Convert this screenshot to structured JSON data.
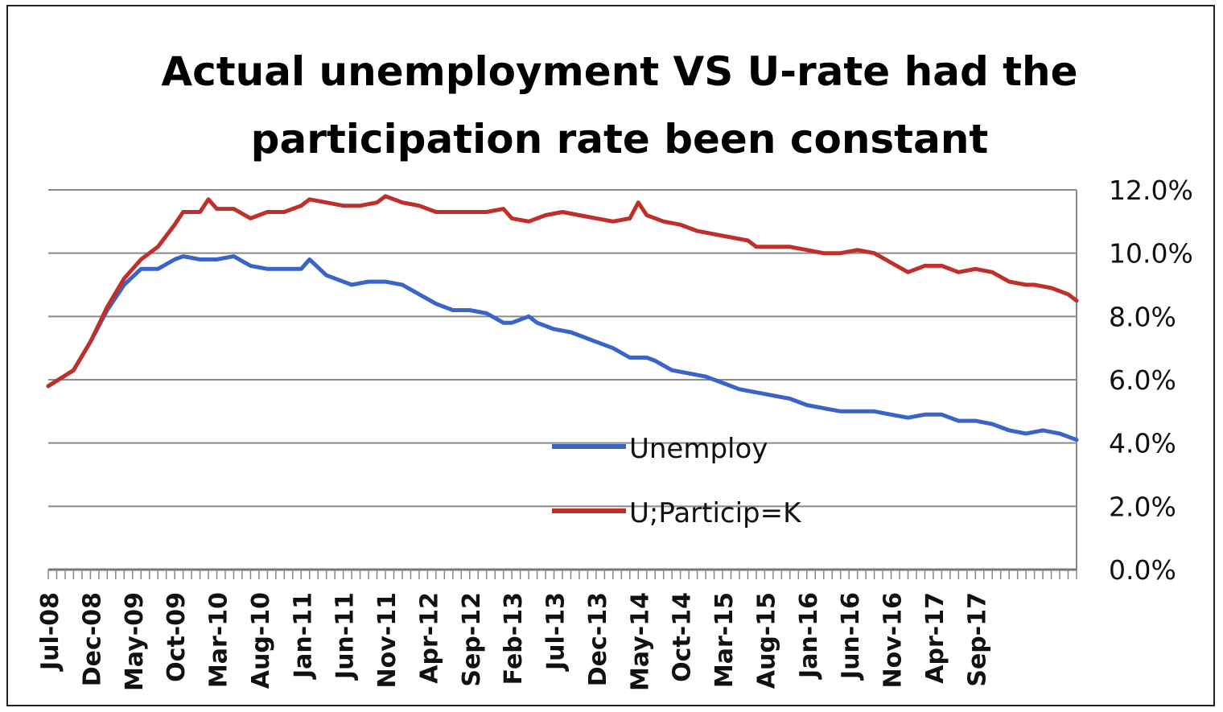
{
  "chart_data": {
    "type": "line",
    "title_lines": [
      "Actual unemployment VS U-rate had the",
      "participation rate been constant"
    ],
    "xlabel": "",
    "ylabel": "",
    "ylim": [
      0,
      12
    ],
    "y_ticks": [
      "0.0%",
      "2.0%",
      "4.0%",
      "6.0%",
      "8.0%",
      "10.0%",
      "12.0%"
    ],
    "x_ticks": [
      "Jul-08",
      "Dec-08",
      "May-09",
      "Oct-09",
      "Mar-10",
      "Aug-10",
      "Jan-11",
      "Jun-11",
      "Nov-11",
      "Apr-12",
      "Sep-12",
      "Feb-13",
      "Jul-13",
      "Dec-13",
      "May-14",
      "Oct-14",
      "Mar-15",
      "Aug-15",
      "Jan-16",
      "Jun-16",
      "Nov-16",
      "Apr-17",
      "Sep-17"
    ],
    "grid": true,
    "legend_position": "center",
    "series": [
      {
        "name": "Unemploy",
        "color": "#3a64c8",
        "points": [
          [
            0,
            5.8
          ],
          [
            3,
            6.3
          ],
          [
            5,
            7.2
          ],
          [
            7,
            8.2
          ],
          [
            9,
            9
          ],
          [
            11,
            9.5
          ],
          [
            13,
            9.5
          ],
          [
            15,
            9.8
          ],
          [
            16,
            9.9
          ],
          [
            18,
            9.8
          ],
          [
            20,
            9.8
          ],
          [
            22,
            9.9
          ],
          [
            24,
            9.6
          ],
          [
            26,
            9.5
          ],
          [
            28,
            9.5
          ],
          [
            30,
            9.5
          ],
          [
            31,
            9.8
          ],
          [
            33,
            9.3
          ],
          [
            36,
            9
          ],
          [
            38,
            9.1
          ],
          [
            40,
            9.1
          ],
          [
            42,
            9
          ],
          [
            44,
            8.7
          ],
          [
            46,
            8.4
          ],
          [
            48,
            8.2
          ],
          [
            50,
            8.2
          ],
          [
            52,
            8.1
          ],
          [
            54,
            7.8
          ],
          [
            55,
            7.8
          ],
          [
            57,
            8
          ],
          [
            58,
            7.8
          ],
          [
            60,
            7.6
          ],
          [
            62,
            7.5
          ],
          [
            64,
            7.3
          ],
          [
            65,
            7.2
          ],
          [
            67,
            7
          ],
          [
            69,
            6.7
          ],
          [
            71,
            6.7
          ],
          [
            72,
            6.6
          ],
          [
            74,
            6.3
          ],
          [
            76,
            6.2
          ],
          [
            78,
            6.1
          ],
          [
            80,
            5.9
          ],
          [
            82,
            5.7
          ],
          [
            84,
            5.6
          ],
          [
            86,
            5.5
          ],
          [
            88,
            5.4
          ],
          [
            90,
            5.2
          ],
          [
            92,
            5.1
          ],
          [
            94,
            5
          ],
          [
            96,
            5
          ],
          [
            98,
            5
          ],
          [
            100,
            4.9
          ],
          [
            102,
            4.8
          ],
          [
            104,
            4.9
          ],
          [
            106,
            4.9
          ],
          [
            108,
            4.7
          ],
          [
            110,
            4.7
          ],
          [
            112,
            4.6
          ],
          [
            114,
            4.4
          ],
          [
            116,
            4.3
          ],
          [
            118,
            4.4
          ],
          [
            120,
            4.3
          ],
          [
            121,
            4.2
          ],
          [
            122,
            4.1
          ]
        ]
      },
      {
        "name": "U;Particip=K",
        "color": "#c0302a",
        "points": [
          [
            0,
            5.8
          ],
          [
            3,
            6.3
          ],
          [
            5,
            7.2
          ],
          [
            7,
            8.3
          ],
          [
            9,
            9.2
          ],
          [
            11,
            9.8
          ],
          [
            13,
            10.2
          ],
          [
            15,
            10.9
          ],
          [
            16,
            11.3
          ],
          [
            18,
            11.3
          ],
          [
            19,
            11.7
          ],
          [
            20,
            11.4
          ],
          [
            22,
            11.4
          ],
          [
            24,
            11.1
          ],
          [
            26,
            11.3
          ],
          [
            28,
            11.3
          ],
          [
            30,
            11.5
          ],
          [
            31,
            11.7
          ],
          [
            33,
            11.6
          ],
          [
            35,
            11.5
          ],
          [
            37,
            11.5
          ],
          [
            39,
            11.6
          ],
          [
            40,
            11.8
          ],
          [
            42,
            11.6
          ],
          [
            44,
            11.5
          ],
          [
            46,
            11.3
          ],
          [
            48,
            11.3
          ],
          [
            50,
            11.3
          ],
          [
            52,
            11.3
          ],
          [
            54,
            11.4
          ],
          [
            55,
            11.1
          ],
          [
            57,
            11
          ],
          [
            59,
            11.2
          ],
          [
            61,
            11.3
          ],
          [
            63,
            11.2
          ],
          [
            65,
            11.1
          ],
          [
            67,
            11
          ],
          [
            69,
            11.1
          ],
          [
            70,
            11.6
          ],
          [
            71,
            11.2
          ],
          [
            73,
            11
          ],
          [
            75,
            10.9
          ],
          [
            77,
            10.7
          ],
          [
            79,
            10.6
          ],
          [
            81,
            10.5
          ],
          [
            83,
            10.4
          ],
          [
            84,
            10.2
          ],
          [
            86,
            10.2
          ],
          [
            88,
            10.2
          ],
          [
            90,
            10.1
          ],
          [
            92,
            10
          ],
          [
            94,
            10
          ],
          [
            96,
            10.1
          ],
          [
            98,
            10
          ],
          [
            100,
            9.7
          ],
          [
            102,
            9.4
          ],
          [
            104,
            9.6
          ],
          [
            106,
            9.6
          ],
          [
            108,
            9.4
          ],
          [
            110,
            9.5
          ],
          [
            112,
            9.4
          ],
          [
            114,
            9.1
          ],
          [
            116,
            9
          ],
          [
            117,
            9
          ],
          [
            119,
            8.9
          ],
          [
            121,
            8.7
          ],
          [
            122,
            8.5
          ]
        ]
      }
    ]
  }
}
